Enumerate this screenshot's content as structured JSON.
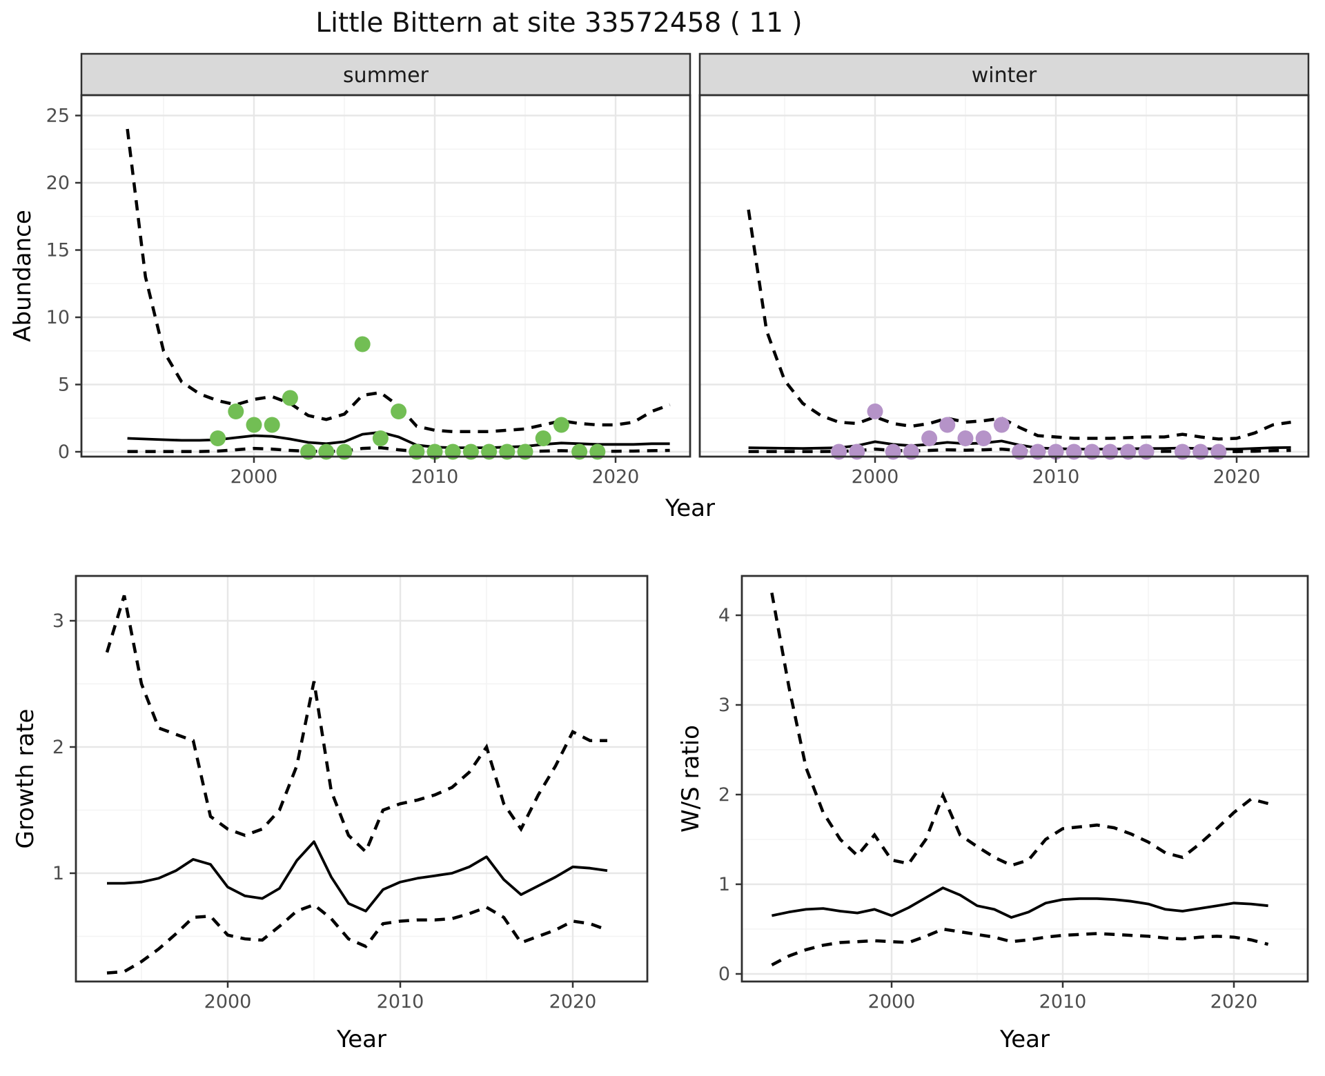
{
  "title": "Little Bittern at site 33572458 ( 11 )",
  "colors": {
    "summer_point": "#72be54",
    "winter_point": "#b593c8",
    "line": "#000000",
    "grid_major": "#e7e7e7",
    "grid_minor": "#f3f3f3",
    "strip_bg": "#d9d9d9",
    "panel_border": "#2f2f2f",
    "tick_text": "#4d4d4d"
  },
  "chart_data": [
    {
      "id": "abundance_summer",
      "type": "scatter",
      "facet": "summer",
      "xlabel": "Year",
      "ylabel": "Abundance",
      "xticks": [
        2000,
        2010,
        2020
      ],
      "xminor": [
        1995,
        2005,
        2015
      ],
      "yticks": [
        0,
        5,
        10,
        15,
        20,
        25
      ],
      "yminor": [
        2.5,
        7.5,
        12.5,
        17.5,
        22.5
      ],
      "xlim": [
        1990.5,
        2024.1
      ],
      "ylim": [
        -0.4,
        26.5
      ],
      "points": {
        "years": [
          1998,
          1999,
          2000,
          2001,
          2002,
          2003,
          2004,
          2005,
          2006,
          2007,
          2008,
          2009,
          2010,
          2011,
          2012,
          2013,
          2014,
          2015,
          2016,
          2017,
          2018,
          2019
        ],
        "values": [
          1,
          3,
          2,
          2,
          4,
          0,
          0,
          0,
          8,
          1,
          3,
          0,
          0,
          0,
          0,
          0,
          0,
          0,
          1,
          2,
          0,
          0
        ]
      },
      "line_years": [
        1993,
        1994,
        1995,
        1996,
        1997,
        1998,
        1999,
        2000,
        2001,
        2002,
        2003,
        2004,
        2005,
        2006,
        2007,
        2008,
        2009,
        2010,
        2011,
        2012,
        2013,
        2014,
        2015,
        2016,
        2017,
        2018,
        2019,
        2020,
        2021,
        2022,
        2023
      ],
      "mean": [
        1.0,
        0.95,
        0.9,
        0.85,
        0.85,
        0.9,
        1.05,
        1.2,
        1.15,
        0.95,
        0.7,
        0.6,
        0.75,
        1.3,
        1.45,
        1.1,
        0.5,
        0.35,
        0.3,
        0.3,
        0.3,
        0.35,
        0.4,
        0.55,
        0.65,
        0.6,
        0.55,
        0.55,
        0.55,
        0.6,
        0.6
      ],
      "upper": [
        24,
        13,
        7.5,
        5.2,
        4.3,
        3.8,
        3.5,
        3.9,
        4.1,
        3.6,
        2.7,
        2.4,
        2.8,
        4.2,
        4.4,
        3.4,
        1.9,
        1.6,
        1.5,
        1.5,
        1.5,
        1.6,
        1.7,
        2.0,
        2.3,
        2.1,
        2.0,
        2.0,
        2.2,
        3.0,
        3.5
      ],
      "lower": [
        0.02,
        0.02,
        0.02,
        0.02,
        0.02,
        0.05,
        0.15,
        0.25,
        0.2,
        0.1,
        0.04,
        0.03,
        0.05,
        0.25,
        0.3,
        0.15,
        0.03,
        0.02,
        0.02,
        0.02,
        0.02,
        0.02,
        0.03,
        0.05,
        0.08,
        0.05,
        0.04,
        0.04,
        0.05,
        0.08,
        0.1
      ]
    },
    {
      "id": "abundance_winter",
      "type": "scatter",
      "facet": "winter",
      "xlabel": "Year",
      "ylabel": "Abundance",
      "xticks": [
        2000,
        2010,
        2020
      ],
      "xminor": [
        1995,
        2005,
        2015
      ],
      "yticks": [
        0,
        5,
        10,
        15,
        20,
        25
      ],
      "yminor": [
        2.5,
        7.5,
        12.5,
        17.5,
        22.5
      ],
      "xlim": [
        1990.5,
        2024.1
      ],
      "ylim": [
        -0.4,
        26.5
      ],
      "points": {
        "years": [
          1998,
          1999,
          2000,
          2001,
          2002,
          2003,
          2004,
          2005,
          2006,
          2007,
          2008,
          2009,
          2010,
          2011,
          2012,
          2013,
          2014,
          2015,
          2017,
          2018,
          2019
        ],
        "values": [
          0,
          0,
          3,
          0,
          0,
          1,
          2,
          1,
          1,
          2,
          0,
          0,
          0,
          0,
          0,
          0,
          0,
          0,
          0,
          0,
          0
        ]
      },
      "line_years": [
        1993,
        1994,
        1995,
        1996,
        1997,
        1998,
        1999,
        2000,
        2001,
        2002,
        2003,
        2004,
        2005,
        2006,
        2007,
        2008,
        2009,
        2010,
        2011,
        2012,
        2013,
        2014,
        2015,
        2016,
        2017,
        2018,
        2019,
        2020,
        2021,
        2022,
        2023
      ],
      "mean": [
        0.3,
        0.28,
        0.26,
        0.25,
        0.27,
        0.3,
        0.45,
        0.75,
        0.55,
        0.45,
        0.55,
        0.7,
        0.6,
        0.65,
        0.8,
        0.5,
        0.28,
        0.24,
        0.2,
        0.2,
        0.2,
        0.22,
        0.24,
        0.25,
        0.28,
        0.24,
        0.2,
        0.2,
        0.25,
        0.3,
        0.32
      ],
      "upper": [
        18,
        9,
        5.3,
        3.6,
        2.7,
        2.2,
        2.1,
        2.6,
        2.1,
        1.9,
        2.1,
        2.5,
        2.2,
        2.3,
        2.5,
        1.8,
        1.2,
        1.1,
        1.0,
        1.0,
        1.0,
        1.05,
        1.1,
        1.1,
        1.3,
        1.1,
        0.95,
        1.0,
        1.4,
        2.0,
        2.2
      ],
      "lower": [
        0.02,
        0.02,
        0.02,
        0.02,
        0.02,
        0.03,
        0.08,
        0.2,
        0.1,
        0.06,
        0.1,
        0.15,
        0.12,
        0.15,
        0.2,
        0.08,
        0.02,
        0.02,
        0.02,
        0.02,
        0.02,
        0.02,
        0.02,
        0.03,
        0.04,
        0.03,
        0.02,
        0.02,
        0.04,
        0.08,
        0.1
      ]
    },
    {
      "id": "growth_rate",
      "type": "line",
      "xlabel": "Year",
      "ylabel": "Growth rate",
      "xticks": [
        2000,
        2010,
        2020
      ],
      "xminor": [
        1995,
        2005,
        2015
      ],
      "yticks": [
        1,
        2,
        3
      ],
      "yminor": [
        0.5,
        1.5,
        2.5
      ],
      "xlim": [
        1991.2,
        2024.3
      ],
      "ylim": [
        0.14,
        3.35
      ],
      "line_years": [
        1993,
        1994,
        1995,
        1996,
        1997,
        1998,
        1999,
        2000,
        2001,
        2002,
        2003,
        2004,
        2005,
        2006,
        2007,
        2008,
        2009,
        2010,
        2011,
        2012,
        2013,
        2014,
        2015,
        2016,
        2017,
        2018,
        2019,
        2020,
        2021,
        2022
      ],
      "mean": [
        0.92,
        0.92,
        0.93,
        0.96,
        1.02,
        1.11,
        1.07,
        0.89,
        0.82,
        0.8,
        0.88,
        1.1,
        1.25,
        0.97,
        0.76,
        0.7,
        0.87,
        0.93,
        0.96,
        0.98,
        1.0,
        1.05,
        1.13,
        0.95,
        0.83,
        0.9,
        0.97,
        1.05,
        1.04,
        1.02
      ],
      "upper": [
        2.75,
        3.2,
        2.5,
        2.15,
        2.1,
        2.05,
        1.45,
        1.35,
        1.3,
        1.35,
        1.5,
        1.85,
        2.52,
        1.65,
        1.3,
        1.17,
        1.5,
        1.55,
        1.58,
        1.62,
        1.68,
        1.8,
        2.0,
        1.55,
        1.35,
        1.62,
        1.85,
        2.12,
        2.05,
        2.05
      ],
      "lower": [
        0.21,
        0.22,
        0.3,
        0.4,
        0.52,
        0.65,
        0.66,
        0.51,
        0.48,
        0.47,
        0.58,
        0.7,
        0.75,
        0.64,
        0.48,
        0.42,
        0.6,
        0.62,
        0.63,
        0.63,
        0.64,
        0.68,
        0.73,
        0.65,
        0.45,
        0.5,
        0.55,
        0.62,
        0.6,
        0.55
      ]
    },
    {
      "id": "ws_ratio",
      "type": "line",
      "xlabel": "Year",
      "ylabel": "W/S ratio",
      "xticks": [
        2000,
        2010,
        2020
      ],
      "xminor": [
        1995,
        2005,
        2015
      ],
      "yticks": [
        0,
        1,
        2,
        3,
        4
      ],
      "yminor": [
        0.5,
        1.5,
        2.5,
        3.5
      ],
      "xlim": [
        1991.2,
        2024.3
      ],
      "ylim": [
        -0.08,
        4.44
      ],
      "line_years": [
        1993,
        1994,
        1995,
        1996,
        1997,
        1998,
        1999,
        2000,
        2001,
        2002,
        2003,
        2004,
        2005,
        2006,
        2007,
        2008,
        2009,
        2010,
        2011,
        2012,
        2013,
        2014,
        2015,
        2016,
        2017,
        2018,
        2019,
        2020,
        2021,
        2022
      ],
      "mean": [
        0.65,
        0.69,
        0.72,
        0.73,
        0.7,
        0.68,
        0.72,
        0.65,
        0.74,
        0.85,
        0.96,
        0.88,
        0.76,
        0.72,
        0.63,
        0.69,
        0.79,
        0.83,
        0.84,
        0.84,
        0.83,
        0.81,
        0.78,
        0.72,
        0.7,
        0.73,
        0.76,
        0.79,
        0.78,
        0.76
      ],
      "upper": [
        4.25,
        3.2,
        2.3,
        1.8,
        1.5,
        1.32,
        1.55,
        1.27,
        1.23,
        1.5,
        1.99,
        1.55,
        1.42,
        1.3,
        1.21,
        1.27,
        1.5,
        1.62,
        1.64,
        1.66,
        1.63,
        1.56,
        1.47,
        1.35,
        1.3,
        1.45,
        1.62,
        1.8,
        1.95,
        1.9
      ],
      "lower": [
        0.1,
        0.2,
        0.27,
        0.32,
        0.35,
        0.36,
        0.37,
        0.36,
        0.35,
        0.42,
        0.5,
        0.47,
        0.44,
        0.41,
        0.36,
        0.38,
        0.41,
        0.43,
        0.44,
        0.45,
        0.44,
        0.43,
        0.42,
        0.4,
        0.39,
        0.41,
        0.42,
        0.41,
        0.38,
        0.33
      ]
    }
  ]
}
